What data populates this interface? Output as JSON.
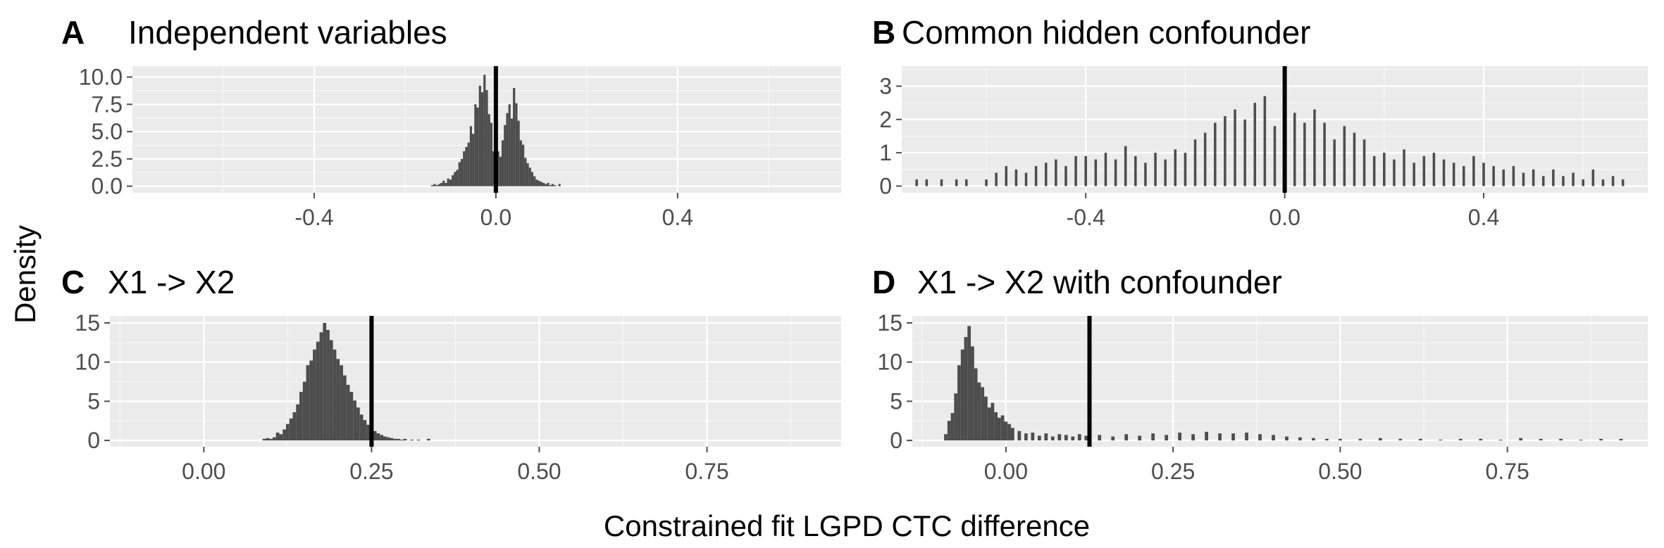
{
  "figure": {
    "xlabel": "Constrained fit LGPD CTC difference",
    "ylabel": "Density"
  },
  "style": {
    "panel_bg": "#ebebeb",
    "grid_major": "#ffffff",
    "bar_fill": "#4d4d4d",
    "ref_line": "#000000",
    "tick_color": "#4d4d4d"
  },
  "chart_data": [
    {
      "type": "bar",
      "letter": "A",
      "title": "Independent variables",
      "xlim": [
        -0.8,
        0.76
      ],
      "ylim": [
        -0.6,
        11.0
      ],
      "xticks": [
        -0.4,
        0.0,
        0.4
      ],
      "xtick_labels": [
        "-0.4",
        "0.0",
        "0.4"
      ],
      "yticks": [
        0,
        2.5,
        5,
        7.5,
        10
      ],
      "ytick_labels": [
        "0.0",
        "2.5",
        "5.0",
        "7.5",
        "10.0"
      ],
      "ref_line": 0.0,
      "bin_width": 0.005,
      "x": [
        -0.14,
        -0.135,
        -0.13,
        -0.125,
        -0.12,
        -0.115,
        -0.11,
        -0.105,
        -0.1,
        -0.095,
        -0.09,
        -0.085,
        -0.08,
        -0.075,
        -0.07,
        -0.065,
        -0.06,
        -0.055,
        -0.05,
        -0.045,
        -0.04,
        -0.035,
        -0.03,
        -0.025,
        -0.02,
        -0.015,
        -0.01,
        -0.005,
        0.0,
        0.005,
        0.01,
        0.015,
        0.02,
        0.025,
        0.03,
        0.035,
        0.04,
        0.045,
        0.05,
        0.055,
        0.06,
        0.065,
        0.07,
        0.075,
        0.08,
        0.085,
        0.09,
        0.095,
        0.1,
        0.105,
        0.11,
        0.115,
        0.12,
        0.125,
        0.13,
        0.135,
        0.14
      ],
      "values": [
        0.1,
        0.2,
        0.1,
        0.2,
        0.3,
        0.5,
        0.3,
        0.7,
        0.6,
        1.0,
        1.3,
        1.5,
        2.2,
        2.5,
        3.2,
        3.6,
        4.0,
        5.5,
        4.8,
        7.5,
        7.2,
        9.2,
        8.6,
        10.2,
        8.8,
        6.6,
        5.8,
        3.2,
        4.6,
        3.2,
        2.7,
        4.2,
        5.6,
        6.7,
        7.5,
        6.2,
        9.0,
        7.6,
        6.0,
        4.2,
        3.8,
        2.6,
        2.1,
        1.7,
        1.3,
        0.9,
        0.6,
        0.5,
        0.4,
        0.3,
        0.2,
        0.3,
        0.1,
        0.2,
        0.1,
        0.0,
        0.2
      ]
    },
    {
      "type": "bar",
      "letter": "B",
      "title": "Common hidden confounder",
      "xlim": [
        -0.77,
        0.73
      ],
      "ylim": [
        -0.2,
        3.6
      ],
      "xticks": [
        -0.4,
        0.0,
        0.4
      ],
      "xtick_labels": [
        "-0.4",
        "0.0",
        "0.4"
      ],
      "yticks": [
        0,
        1,
        2,
        3
      ],
      "ytick_labels": [
        "0",
        "1",
        "2",
        "3"
      ],
      "ref_line": 0.0,
      "bin_width": 0.005,
      "x": [
        -0.74,
        -0.72,
        -0.69,
        -0.66,
        -0.64,
        -0.6,
        -0.58,
        -0.56,
        -0.54,
        -0.52,
        -0.5,
        -0.48,
        -0.46,
        -0.44,
        -0.42,
        -0.4,
        -0.38,
        -0.36,
        -0.34,
        -0.32,
        -0.3,
        -0.28,
        -0.26,
        -0.24,
        -0.22,
        -0.2,
        -0.18,
        -0.16,
        -0.14,
        -0.12,
        -0.1,
        -0.08,
        -0.06,
        -0.04,
        -0.02,
        0.0,
        0.02,
        0.04,
        0.06,
        0.08,
        0.1,
        0.12,
        0.14,
        0.16,
        0.18,
        0.2,
        0.22,
        0.24,
        0.26,
        0.28,
        0.3,
        0.32,
        0.34,
        0.36,
        0.38,
        0.4,
        0.42,
        0.44,
        0.46,
        0.48,
        0.5,
        0.52,
        0.54,
        0.56,
        0.58,
        0.6,
        0.62,
        0.64,
        0.66,
        0.68
      ],
      "values": [
        0.2,
        0.2,
        0.2,
        0.2,
        0.2,
        0.2,
        0.4,
        0.6,
        0.5,
        0.4,
        0.6,
        0.7,
        0.8,
        0.6,
        0.9,
        0.9,
        0.8,
        1.0,
        0.8,
        1.2,
        0.9,
        0.7,
        1.0,
        0.8,
        1.1,
        1.0,
        1.4,
        1.6,
        1.9,
        2.1,
        2.3,
        2.0,
        2.5,
        2.7,
        1.8,
        1.6,
        2.2,
        1.9,
        2.3,
        1.9,
        1.4,
        1.8,
        1.6,
        1.4,
        0.9,
        1.0,
        0.8,
        1.1,
        0.7,
        0.9,
        1.0,
        0.8,
        0.7,
        0.6,
        0.9,
        0.7,
        0.6,
        0.5,
        0.6,
        0.4,
        0.5,
        0.3,
        0.5,
        0.3,
        0.4,
        0.2,
        0.5,
        0.2,
        0.3,
        0.2
      ]
    },
    {
      "type": "bar",
      "letter": "C",
      "title": "X1 -> X2",
      "xlim": [
        -0.14,
        0.95
      ],
      "ylim": [
        -0.8,
        15.9
      ],
      "xticks": [
        0.0,
        0.25,
        0.5,
        0.75
      ],
      "xtick_labels": [
        "0.00",
        "0.25",
        "0.50",
        "0.75"
      ],
      "yticks": [
        0,
        5,
        10,
        15
      ],
      "ytick_labels": [
        "0",
        "5",
        "10",
        "15"
      ],
      "ref_line": 0.25,
      "bin_width": 0.005,
      "x": [
        0.09,
        0.095,
        0.1,
        0.105,
        0.11,
        0.115,
        0.12,
        0.125,
        0.13,
        0.135,
        0.14,
        0.145,
        0.15,
        0.155,
        0.16,
        0.165,
        0.17,
        0.175,
        0.18,
        0.185,
        0.19,
        0.195,
        0.2,
        0.205,
        0.21,
        0.215,
        0.22,
        0.225,
        0.23,
        0.235,
        0.24,
        0.245,
        0.25,
        0.255,
        0.26,
        0.265,
        0.27,
        0.275,
        0.28,
        0.285,
        0.29,
        0.295,
        0.3,
        0.31,
        0.32,
        0.335
      ],
      "values": [
        0.2,
        0.3,
        0.2,
        0.4,
        1.0,
        0.8,
        1.4,
        2.1,
        2.8,
        3.6,
        4.6,
        6.2,
        7.5,
        9.6,
        10.2,
        11.6,
        12.6,
        13.8,
        15.0,
        14.1,
        12.8,
        11.6,
        10.4,
        9.6,
        8.3,
        7.1,
        6.2,
        5.1,
        4.2,
        3.3,
        2.6,
        2.0,
        1.6,
        1.2,
        0.9,
        0.7,
        0.5,
        0.4,
        0.3,
        0.2,
        0.2,
        0.1,
        0.2,
        0.1,
        0.1,
        0.2
      ]
    },
    {
      "type": "bar",
      "letter": "D",
      "title": "X1 -> X2 with confounder",
      "xlim": [
        -0.14,
        0.96
      ],
      "ylim": [
        -0.8,
        15.9
      ],
      "xticks": [
        0.0,
        0.25,
        0.5,
        0.75
      ],
      "xtick_labels": [
        "0.00",
        "0.25",
        "0.50",
        "0.75"
      ],
      "yticks": [
        0,
        5,
        10,
        15
      ],
      "ytick_labels": [
        "0",
        "5",
        "10",
        "15"
      ],
      "ref_line": 0.125,
      "bin_width": 0.005,
      "x": [
        -0.09,
        -0.085,
        -0.08,
        -0.075,
        -0.07,
        -0.065,
        -0.06,
        -0.055,
        -0.05,
        -0.045,
        -0.04,
        -0.035,
        -0.03,
        -0.025,
        -0.02,
        -0.015,
        -0.01,
        -0.005,
        0.0,
        0.005,
        0.01,
        0.02,
        0.03,
        0.04,
        0.05,
        0.06,
        0.07,
        0.08,
        0.09,
        0.1,
        0.11,
        0.12,
        0.14,
        0.16,
        0.18,
        0.2,
        0.22,
        0.24,
        0.26,
        0.28,
        0.3,
        0.32,
        0.34,
        0.36,
        0.38,
        0.4,
        0.42,
        0.44,
        0.46,
        0.48,
        0.5,
        0.53,
        0.56,
        0.59,
        0.62,
        0.65,
        0.68,
        0.71,
        0.74,
        0.77,
        0.8,
        0.83,
        0.86,
        0.89,
        0.92
      ],
      "values": [
        0.8,
        2.5,
        3.5,
        6.0,
        9.6,
        11.6,
        13.2,
        14.6,
        12.0,
        9.2,
        7.4,
        6.8,
        5.6,
        4.2,
        4.8,
        3.6,
        2.9,
        3.2,
        2.4,
        2.1,
        1.6,
        1.2,
        0.9,
        1.0,
        0.6,
        0.9,
        0.5,
        0.8,
        0.7,
        0.5,
        0.8,
        0.6,
        0.7,
        0.5,
        0.8,
        0.6,
        0.9,
        0.7,
        1.0,
        0.8,
        1.1,
        0.9,
        0.9,
        1.0,
        0.8,
        0.7,
        0.5,
        0.4,
        0.3,
        0.2,
        0.2,
        0.2,
        0.3,
        0.2,
        0.2,
        0.1,
        0.2,
        0.2,
        0.1,
        0.3,
        0.2,
        0.2,
        0.1,
        0.2,
        0.2
      ]
    }
  ]
}
